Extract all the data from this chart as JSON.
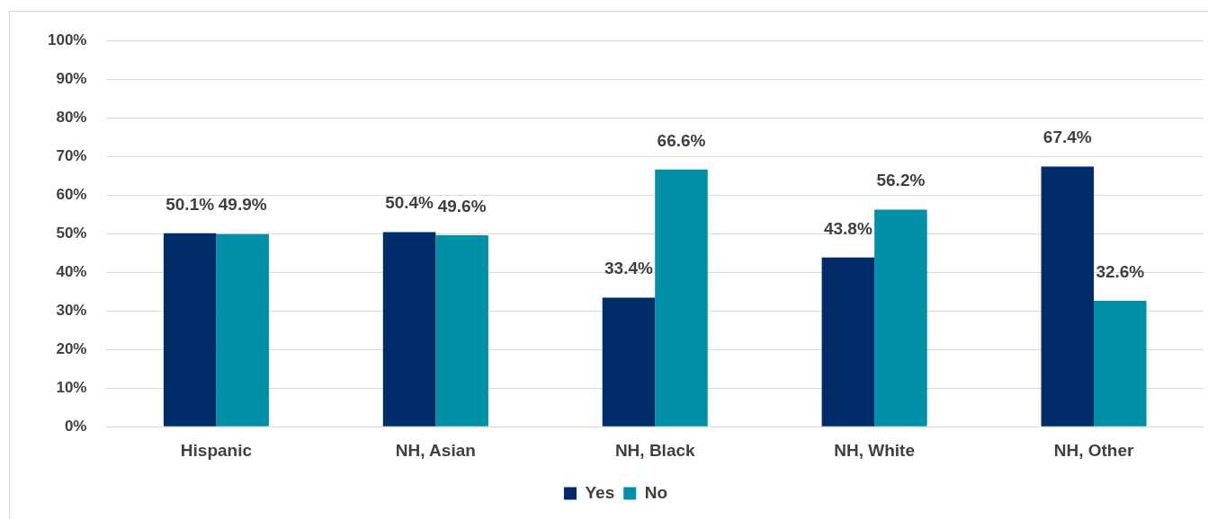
{
  "chart_data": {
    "type": "bar",
    "categories": [
      "Hispanic",
      "NH, Asian",
      "NH, Black",
      "NH, White",
      "NH, Other"
    ],
    "series": [
      {
        "name": "Yes",
        "color": "#002d6a",
        "values": [
          50.1,
          50.4,
          33.4,
          43.8,
          67.4
        ],
        "value_labels": [
          "50.1%",
          "50.4%",
          "33.4%",
          "43.8%",
          "67.4%"
        ]
      },
      {
        "name": "No",
        "color": "#0090a8",
        "values": [
          49.9,
          49.6,
          66.6,
          56.2,
          32.6
        ],
        "value_labels": [
          "49.9%",
          "49.6%",
          "66.6%",
          "56.2%",
          "32.6%"
        ]
      }
    ],
    "ylim": [
      0,
      100
    ],
    "yticks": [
      {
        "value": 0,
        "label": "0%"
      },
      {
        "value": 10,
        "label": "10%"
      },
      {
        "value": 20,
        "label": "20%"
      },
      {
        "value": 30,
        "label": "30%"
      },
      {
        "value": 40,
        "label": "40%"
      },
      {
        "value": 50,
        "label": "50%"
      },
      {
        "value": 60,
        "label": "60%"
      },
      {
        "value": 70,
        "label": "70%"
      },
      {
        "value": 80,
        "label": "80%"
      },
      {
        "value": 90,
        "label": "90%"
      },
      {
        "value": 100,
        "label": "100%"
      }
    ],
    "grid": "y",
    "legend": "bottom"
  }
}
